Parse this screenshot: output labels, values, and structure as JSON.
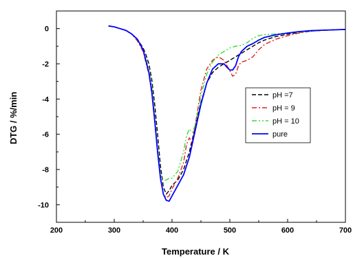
{
  "chart_data": {
    "type": "line",
    "xlabel": "Temperature / K",
    "ylabel": "DTG / %/min",
    "xlim": [
      200,
      700
    ],
    "ylim": [
      -11,
      1
    ],
    "xticks": [
      200,
      300,
      400,
      500,
      600,
      700
    ],
    "yticks": [
      0,
      -2,
      -4,
      -6,
      -8,
      -10
    ],
    "xtick_labels": [
      "200",
      "300",
      "400",
      "500",
      "600",
      "700"
    ],
    "ytick_labels": [
      "0",
      "-2",
      "-4",
      "-6",
      "-8",
      "-10"
    ],
    "grid": false,
    "legend_position": "right",
    "series": [
      {
        "name": "pH =7",
        "color": "#000000",
        "dash": "dashed",
        "x": [
          290,
          300,
          310,
          320,
          330,
          340,
          350,
          355,
          360,
          365,
          370,
          375,
          380,
          385,
          390,
          395,
          400,
          410,
          420,
          430,
          440,
          450,
          460,
          470,
          480,
          490,
          500,
          510,
          520,
          530,
          540,
          550,
          560,
          580,
          600,
          620,
          640,
          660,
          680,
          700
        ],
        "y": [
          0.15,
          0.1,
          0.0,
          -0.1,
          -0.3,
          -0.6,
          -1.1,
          -1.5,
          -2.0,
          -2.9,
          -4.3,
          -6.0,
          -7.8,
          -9.0,
          -9.4,
          -9.2,
          -8.9,
          -8.6,
          -8.0,
          -7.0,
          -5.6,
          -4.2,
          -3.1,
          -2.5,
          -2.2,
          -2.0,
          -1.8,
          -1.6,
          -1.4,
          -1.2,
          -1.0,
          -0.8,
          -0.65,
          -0.45,
          -0.32,
          -0.22,
          -0.15,
          -0.1,
          -0.07,
          -0.05
        ]
      },
      {
        "name": "pH = 9",
        "color": "#e02020",
        "dash": "dashdot",
        "x": [
          290,
          300,
          310,
          320,
          330,
          340,
          350,
          360,
          365,
          370,
          375,
          380,
          385,
          390,
          395,
          400,
          410,
          420,
          425,
          430,
          435,
          440,
          450,
          460,
          470,
          480,
          490,
          500,
          505,
          510,
          515,
          520,
          530,
          540,
          550,
          560,
          580,
          600,
          620,
          640,
          660,
          680,
          700
        ],
        "y": [
          0.15,
          0.1,
          0.0,
          -0.1,
          -0.3,
          -0.7,
          -1.3,
          -2.6,
          -3.7,
          -5.3,
          -7.0,
          -8.5,
          -9.4,
          -9.6,
          -9.5,
          -9.1,
          -8.5,
          -7.6,
          -6.6,
          -6.2,
          -6.5,
          -5.5,
          -3.5,
          -2.3,
          -1.8,
          -1.6,
          -1.8,
          -2.4,
          -2.7,
          -2.6,
          -2.1,
          -1.9,
          -1.8,
          -1.6,
          -1.2,
          -0.9,
          -0.6,
          -0.4,
          -0.25,
          -0.15,
          -0.1,
          -0.07,
          -0.05
        ]
      },
      {
        "name": "pH = 10",
        "color": "#33dd33",
        "dash": "dashdotdot",
        "x": [
          290,
          300,
          310,
          320,
          330,
          340,
          350,
          360,
          365,
          370,
          375,
          380,
          385,
          390,
          395,
          400,
          410,
          420,
          425,
          430,
          435,
          440,
          450,
          460,
          470,
          480,
          490,
          500,
          510,
          520,
          530,
          540,
          550,
          560,
          580,
          600,
          620,
          640,
          660,
          680,
          700
        ],
        "y": [
          0.15,
          0.1,
          0.0,
          -0.1,
          -0.3,
          -0.6,
          -1.2,
          -2.3,
          -3.3,
          -4.9,
          -6.8,
          -8.3,
          -8.6,
          -8.6,
          -8.5,
          -8.5,
          -8.1,
          -7.0,
          -6.1,
          -5.7,
          -5.9,
          -5.5,
          -3.8,
          -2.6,
          -1.9,
          -1.5,
          -1.3,
          -1.1,
          -1.0,
          -0.95,
          -0.8,
          -0.55,
          -0.4,
          -0.35,
          -0.3,
          -0.25,
          -0.2,
          -0.15,
          -0.1,
          -0.07,
          -0.05
        ]
      },
      {
        "name": "pure",
        "color": "#0000ff",
        "dash": "solid",
        "x": [
          290,
          300,
          310,
          320,
          330,
          340,
          350,
          360,
          365,
          370,
          375,
          380,
          385,
          390,
          395,
          400,
          410,
          420,
          430,
          440,
          450,
          460,
          470,
          480,
          490,
          495,
          500,
          505,
          510,
          515,
          520,
          530,
          540,
          550,
          560,
          580,
          600,
          620,
          640,
          660,
          680,
          700
        ],
        "y": [
          0.15,
          0.1,
          0.0,
          -0.1,
          -0.3,
          -0.6,
          -1.2,
          -2.5,
          -3.6,
          -5.2,
          -7.0,
          -8.5,
          -9.4,
          -9.75,
          -9.8,
          -9.5,
          -8.9,
          -8.3,
          -7.3,
          -5.8,
          -4.3,
          -3.1,
          -2.3,
          -2.0,
          -2.0,
          -2.2,
          -2.35,
          -2.35,
          -2.1,
          -1.6,
          -1.3,
          -1.0,
          -0.85,
          -0.65,
          -0.5,
          -0.35,
          -0.25,
          -0.17,
          -0.12,
          -0.09,
          -0.07,
          -0.05
        ]
      }
    ]
  }
}
